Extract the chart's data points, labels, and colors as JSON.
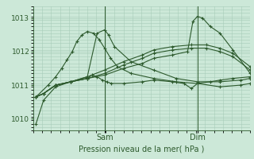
{
  "background_color": "#cce8d8",
  "grid_color": "#a8cdb8",
  "line_color": "#2d5a2d",
  "ylabel_ticks": [
    1010,
    1011,
    1012,
    1013
  ],
  "xlabel": "Pression niveau de la mer( hPa )",
  "x_sam_pos": 95,
  "x_dim_pos": 218,
  "xlim": [
    0,
    288
  ],
  "ylim": [
    1009.65,
    1013.35
  ],
  "lines": [
    {
      "x": [
        4,
        14,
        30,
        50,
        72,
        85,
        95,
        100,
        108,
        130,
        160,
        190,
        218,
        248,
        275,
        288
      ],
      "y": [
        1009.85,
        1010.55,
        1010.95,
        1011.1,
        1011.25,
        1012.55,
        1012.65,
        1012.5,
        1012.15,
        1011.7,
        1011.45,
        1011.2,
        1011.1,
        1011.1,
        1011.15,
        1011.2
      ]
    },
    {
      "x": [
        4,
        14,
        30,
        50,
        72,
        95,
        120,
        145,
        160,
        185,
        210,
        230,
        248,
        265,
        288
      ],
      "y": [
        1010.65,
        1010.75,
        1011.0,
        1011.1,
        1011.25,
        1011.45,
        1011.7,
        1011.9,
        1012.05,
        1012.15,
        1012.2,
        1012.2,
        1012.1,
        1011.95,
        1011.55
      ]
    },
    {
      "x": [
        4,
        14,
        30,
        50,
        72,
        95,
        120,
        145,
        160,
        185,
        210,
        230,
        248,
        265,
        288
      ],
      "y": [
        1010.65,
        1010.75,
        1011.0,
        1011.1,
        1011.2,
        1011.35,
        1011.6,
        1011.8,
        1011.95,
        1012.05,
        1012.1,
        1012.1,
        1012.0,
        1011.85,
        1011.45
      ]
    },
    {
      "x": [
        4,
        14,
        30,
        50,
        72,
        95,
        120,
        145,
        160,
        185,
        205,
        212,
        218,
        225,
        235,
        248,
        265,
        288
      ],
      "y": [
        1010.65,
        1010.75,
        1011.0,
        1011.1,
        1011.2,
        1011.3,
        1011.5,
        1011.65,
        1011.8,
        1011.9,
        1012.0,
        1012.9,
        1013.05,
        1013.0,
        1012.75,
        1012.55,
        1012.05,
        1011.35
      ]
    },
    {
      "x": [
        4,
        14,
        30,
        50,
        72,
        78,
        85,
        92,
        98,
        104,
        120,
        145,
        160,
        185,
        200,
        210,
        218,
        235,
        248,
        265,
        288
      ],
      "y": [
        1010.65,
        1010.75,
        1011.0,
        1011.1,
        1011.2,
        1011.3,
        1011.25,
        1011.15,
        1011.1,
        1011.05,
        1011.05,
        1011.1,
        1011.15,
        1011.1,
        1011.05,
        1010.9,
        1011.05,
        1011.1,
        1011.15,
        1011.2,
        1011.25
      ]
    },
    {
      "x": [
        4,
        20,
        30,
        38,
        45,
        52,
        58,
        65,
        72,
        80,
        88,
        95,
        103,
        112,
        130,
        160,
        190,
        218,
        248,
        275,
        288
      ],
      "y": [
        1010.65,
        1011.0,
        1011.25,
        1011.5,
        1011.75,
        1012.0,
        1012.3,
        1012.5,
        1012.6,
        1012.55,
        1012.35,
        1012.1,
        1011.8,
        1011.55,
        1011.35,
        1011.2,
        1011.1,
        1011.05,
        1010.95,
        1011.0,
        1011.05
      ]
    }
  ],
  "sam_label": "Sam",
  "dim_label": "Dim"
}
